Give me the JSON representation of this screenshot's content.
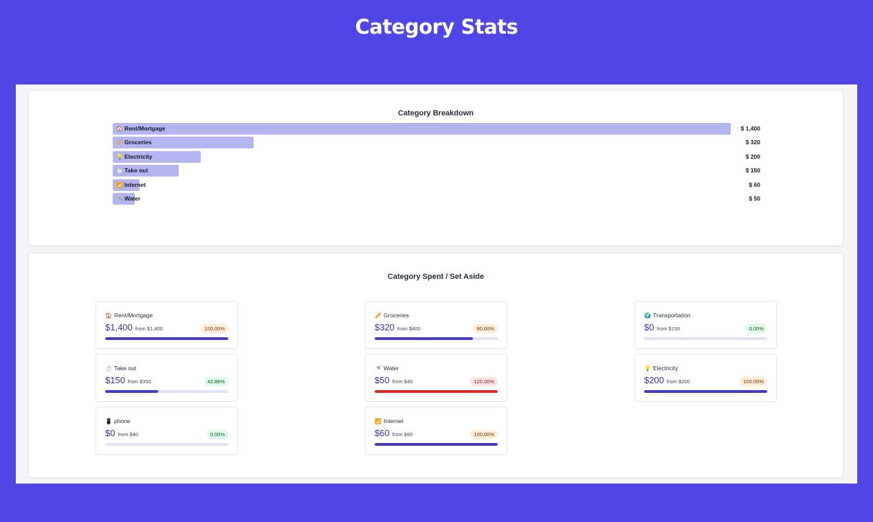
{
  "page": {
    "title": "Category Stats"
  },
  "breakdown": {
    "title": "Category Breakdown",
    "bar_color": "#b4b4ee"
  },
  "chart_data": {
    "type": "bar",
    "orientation": "horizontal",
    "title": "Category Breakdown",
    "categories": [
      "Rent/Mortgage",
      "Groceries",
      "Electricity",
      "Take out",
      "Internet",
      "Water"
    ],
    "icons": [
      "house-icon",
      "bread-icon",
      "lightbulb-icon",
      "timer-icon",
      "chart-icon",
      "shower-icon"
    ],
    "emojis": [
      "🏠",
      "🥖",
      "💡",
      "⏱️",
      "📶",
      "🚿"
    ],
    "values": [
      1400,
      320,
      200,
      150,
      60,
      50
    ],
    "value_labels": [
      "$ 1,400",
      "$ 320",
      "$ 200",
      "$ 150",
      "$ 60",
      "$ 50"
    ],
    "xlim": [
      0,
      1400
    ]
  },
  "spent": {
    "title": "Category Spent / Set Aside",
    "items": [
      {
        "name": "Rent/Mortgage",
        "icon": "house-icon",
        "emoji": "🏠",
        "amount": "$1,400",
        "from": "from $1,400",
        "percent": "100.00%",
        "ratio": 1.0,
        "status": "orange"
      },
      {
        "name": "Groceries",
        "icon": "bread-icon",
        "emoji": "🥖",
        "amount": "$320",
        "from": "from $400",
        "percent": "80.00%",
        "ratio": 0.8,
        "status": "orange"
      },
      {
        "name": "Transportation",
        "icon": "globe-icon",
        "emoji": "🌍",
        "amount": "$0",
        "from": "from $150",
        "percent": "0.00%",
        "ratio": 0.0,
        "status": "green"
      },
      {
        "name": "Take out",
        "icon": "timer-icon",
        "emoji": "⏱️",
        "amount": "$150",
        "from": "from $350",
        "percent": "42.86%",
        "ratio": 0.4286,
        "status": "green"
      },
      {
        "name": "Water",
        "icon": "shower-icon",
        "emoji": "🚿",
        "amount": "$50",
        "from": "from $40",
        "percent": "125.00%",
        "ratio": 1.25,
        "status": "red"
      },
      {
        "name": "Electricity",
        "icon": "lightbulb-icon",
        "emoji": "💡",
        "amount": "$200",
        "from": "from $200",
        "percent": "100.00%",
        "ratio": 1.0,
        "status": "orange"
      },
      {
        "name": "phone",
        "icon": "phone-icon",
        "emoji": "📱",
        "amount": "$0",
        "from": "from $40",
        "percent": "0.00%",
        "ratio": 0.0,
        "status": "green"
      },
      {
        "name": "Internet",
        "icon": "chart-icon",
        "emoji": "📶",
        "amount": "$60",
        "from": "from $60",
        "percent": "100.00%",
        "ratio": 1.0,
        "status": "orange"
      }
    ],
    "colors": {
      "fill": "#4338ca",
      "over": "#dc2626",
      "track": "#e0e0f8"
    }
  }
}
